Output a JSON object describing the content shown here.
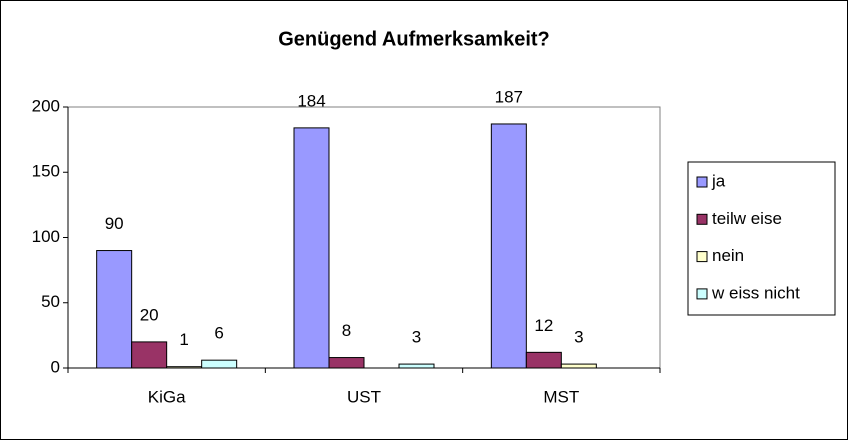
{
  "chart_data": {
    "type": "bar",
    "title": "Genügend Aufmerksamkeit?",
    "categories": [
      "KiGa",
      "UST",
      "MST"
    ],
    "series": [
      {
        "name": "ja",
        "color": "#9999ff",
        "values": [
          90,
          184,
          187
        ]
      },
      {
        "name": "teilw eise",
        "color": "#993366",
        "values": [
          20,
          8,
          12
        ]
      },
      {
        "name": "nein",
        "color": "#ffffcc",
        "values": [
          1,
          null,
          3
        ]
      },
      {
        "name": "w eiss nicht",
        "color": "#ccffff",
        "values": [
          6,
          3,
          null
        ]
      }
    ],
    "ylim": [
      0,
      200
    ],
    "yticks": [
      0,
      50,
      100,
      150,
      200
    ],
    "grid": false,
    "legend": "right"
  }
}
